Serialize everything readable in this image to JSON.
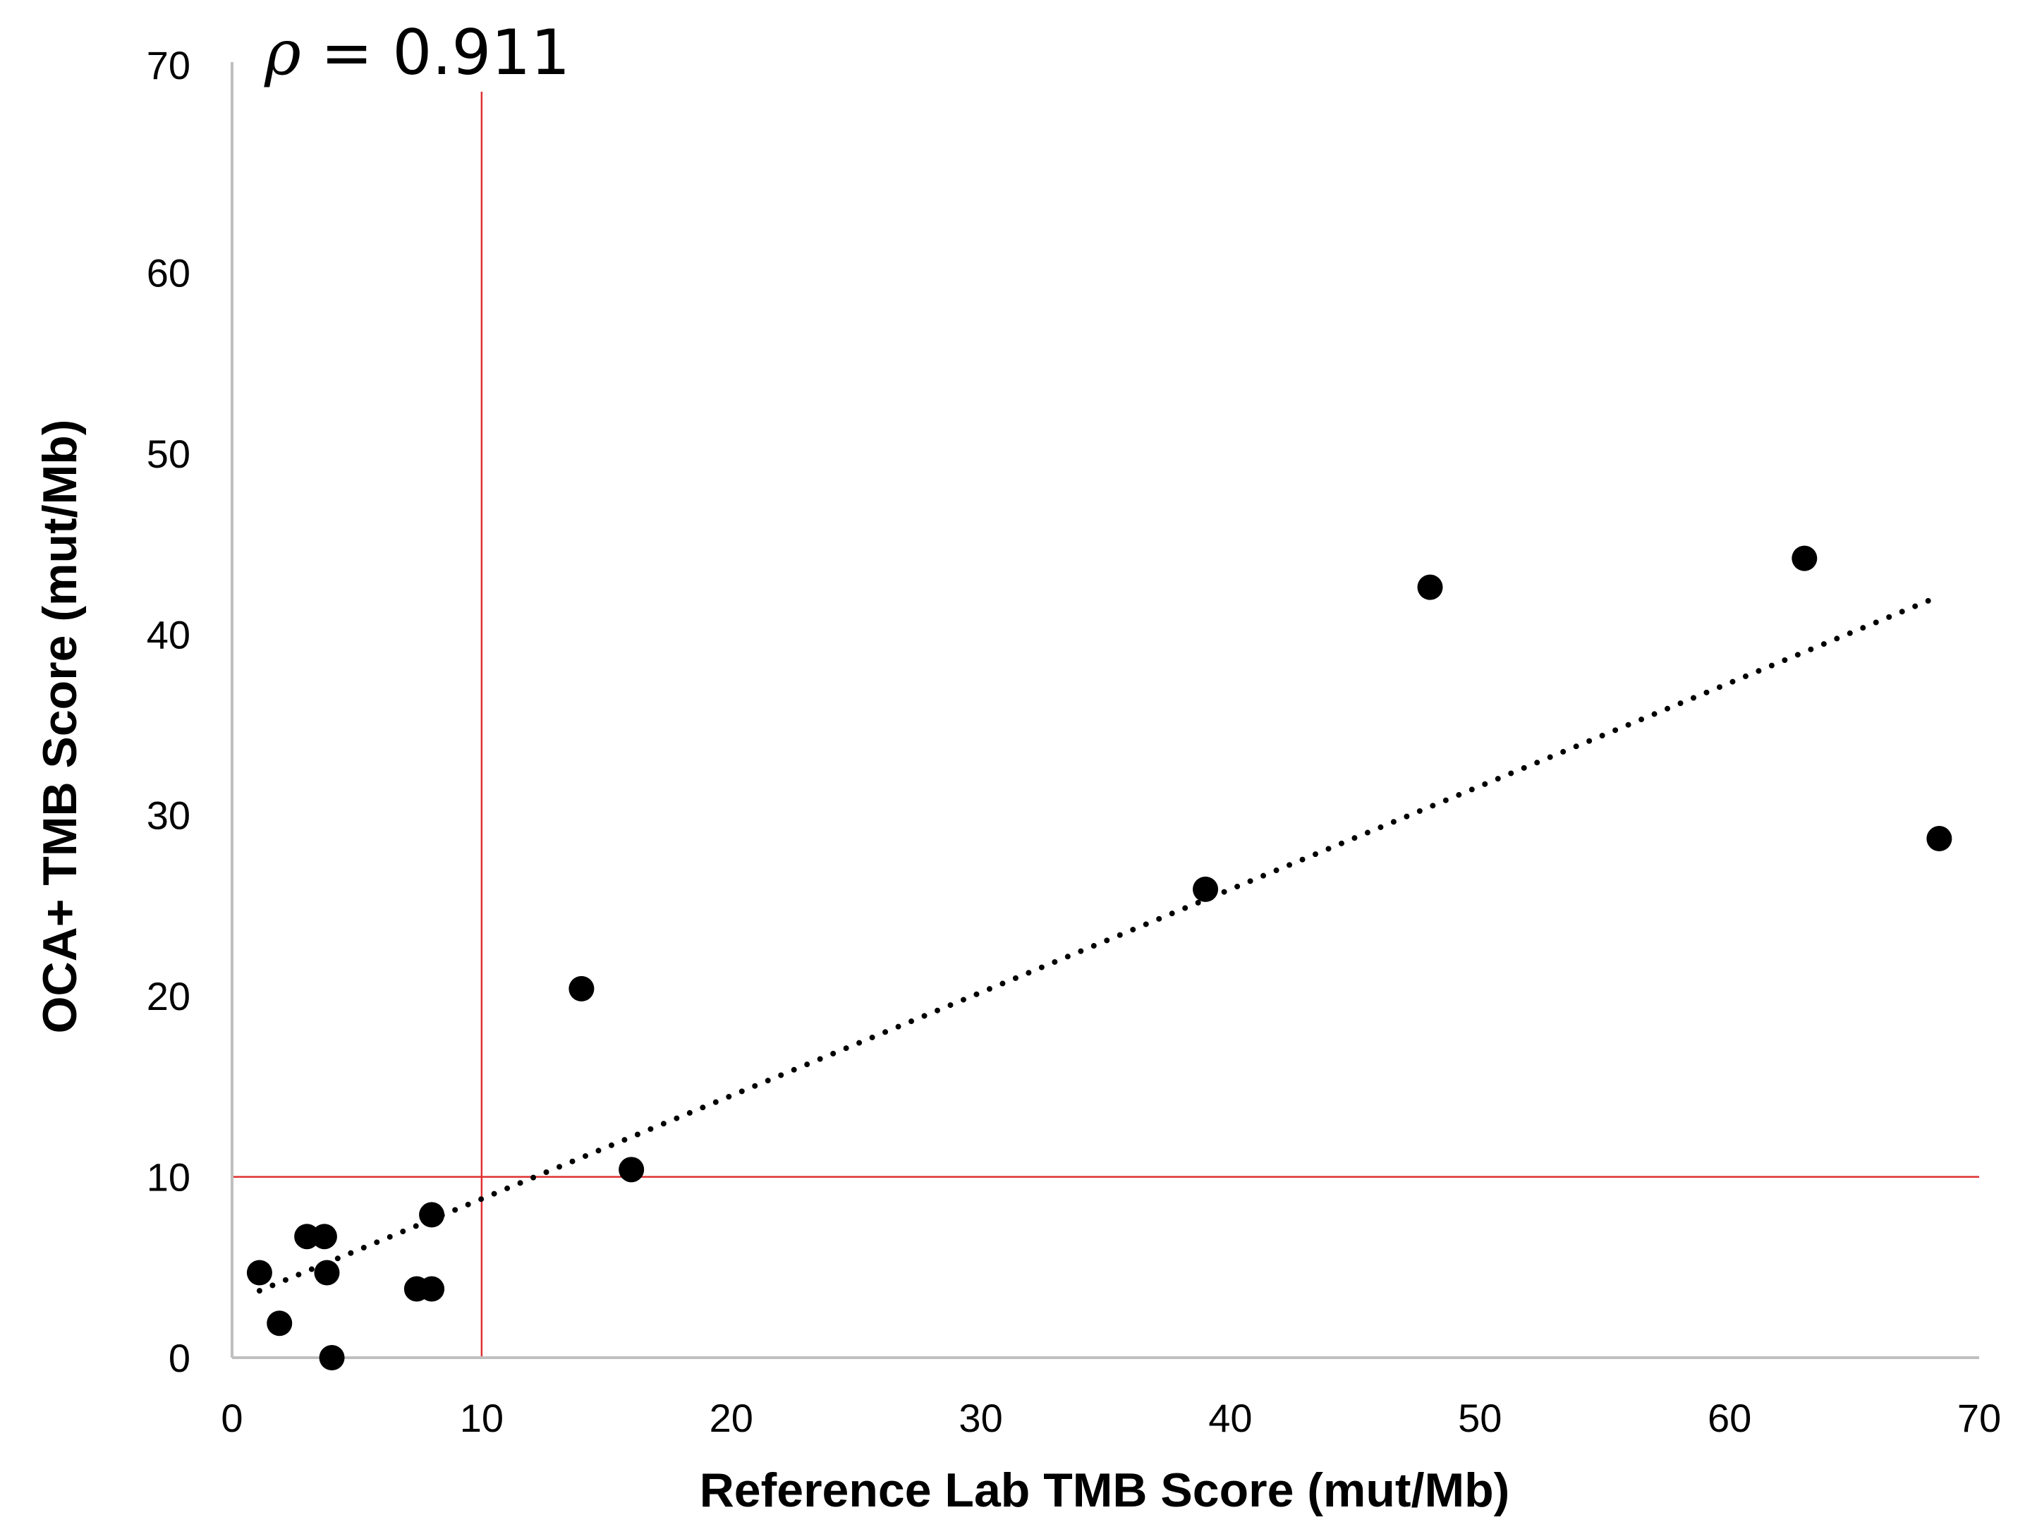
{
  "chart_data": {
    "type": "scatter",
    "annotation": {
      "symbol": "ρ",
      "text": " = 0.911"
    },
    "xlabel": "Reference Lab TMB Score (mut/Mb)",
    "ylabel": "OCA+ TMB Score (mut/Mb)",
    "xlim": [
      0,
      70
    ],
    "ylim": [
      0,
      70
    ],
    "x_ticks": [
      "0",
      "10",
      "20",
      "30",
      "40",
      "50",
      "60",
      "70"
    ],
    "y_ticks": [
      "0",
      "10",
      "20",
      "30",
      "40",
      "50",
      "60",
      "70"
    ],
    "grid": false,
    "series": [
      {
        "marker_color": "#000000",
        "points": [
          {
            "x": 1.1,
            "y": 4.7
          },
          {
            "x": 1.9,
            "y": 1.9
          },
          {
            "x": 3.0,
            "y": 6.7
          },
          {
            "x": 3.7,
            "y": 6.7
          },
          {
            "x": 3.8,
            "y": 4.7
          },
          {
            "x": 4.0,
            "y": 0.0
          },
          {
            "x": 7.4,
            "y": 3.8
          },
          {
            "x": 8.0,
            "y": 3.8
          },
          {
            "x": 8.0,
            "y": 7.9
          },
          {
            "x": 14.0,
            "y": 20.4
          },
          {
            "x": 16.0,
            "y": 10.4
          },
          {
            "x": 39.0,
            "y": 25.9
          },
          {
            "x": 48.0,
            "y": 42.6
          },
          {
            "x": 63.0,
            "y": 44.2
          },
          {
            "x": 68.4,
            "y": 28.7
          }
        ]
      }
    ],
    "trendline": {
      "style": "dotted",
      "color": "#000000",
      "x": [
        1.1,
        68.4
      ],
      "y": [
        3.7,
        42.1
      ]
    },
    "reference_lines": [
      {
        "axis": "x",
        "value": 10,
        "color": "#e03030"
      },
      {
        "axis": "y",
        "value": 10,
        "color": "#e03030"
      }
    ]
  }
}
